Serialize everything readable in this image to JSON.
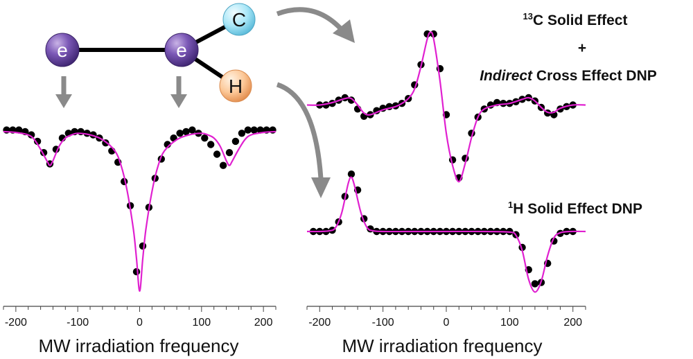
{
  "molecule": {
    "electron1": "e",
    "electron2": "e",
    "carbon": "C",
    "hydrogen": "H",
    "colors": {
      "electron": "#7b58b6",
      "carbon": "#a8e6f7",
      "hydrogen": "#fcc898",
      "arrow": "#8a8a8a"
    }
  },
  "titles": {
    "c13_sup": "13",
    "c13_main": "C Solid Effect",
    "plus": "+",
    "indirect_italic": "Indirect",
    "indirect_rest": " Cross Effect DNP",
    "h1_sup": "1",
    "h1_main": "H Solid Effect DNP"
  },
  "axes": {
    "left": {
      "xlabel": "MW irradiation frequency",
      "ticks": [
        -200,
        -100,
        0,
        100,
        200
      ],
      "tick_labels": [
        "-200",
        "-100",
        "0",
        "100",
        "200"
      ],
      "xlim": [
        -220,
        220
      ]
    },
    "right": {
      "xlabel": "MW irradiation frequency",
      "ticks": [
        -200,
        -100,
        0,
        100,
        200
      ],
      "tick_labels": [
        "-200",
        "-100",
        "0",
        "100",
        "200"
      ],
      "xlim": [
        -220,
        220
      ]
    }
  },
  "chart_data": [
    {
      "type": "scatter",
      "panel": "left",
      "grid": false,
      "xlim": [
        -220,
        220
      ],
      "ylim": [
        -1.0,
        0.05
      ],
      "fit_color": "#e020d0",
      "point_color": "#000000",
      "points_x": [
        -215,
        -205,
        -195,
        -185,
        -175,
        -165,
        -155,
        -145,
        -135,
        -125,
        -115,
        -105,
        -95,
        -85,
        -75,
        -65,
        -55,
        -45,
        -35,
        -25,
        -15,
        -5,
        5,
        15,
        25,
        35,
        45,
        55,
        65,
        75,
        85,
        95,
        105,
        115,
        125,
        135,
        145,
        155,
        165,
        175,
        185,
        195,
        205,
        215
      ],
      "points_y": [
        0.0,
        0.0,
        0.0,
        -0.01,
        -0.03,
        -0.07,
        -0.14,
        -0.21,
        -0.12,
        -0.05,
        -0.02,
        -0.01,
        -0.01,
        -0.02,
        -0.03,
        -0.05,
        -0.08,
        -0.13,
        -0.2,
        -0.32,
        -0.47,
        -0.88,
        -0.72,
        -0.48,
        -0.3,
        -0.18,
        -0.09,
        -0.05,
        -0.02,
        -0.01,
        0.0,
        -0.02,
        -0.05,
        -0.09,
        -0.15,
        -0.22,
        -0.14,
        -0.07,
        -0.02,
        0.0,
        0.0,
        0.0,
        0.0,
        0.0
      ],
      "fit_x": [
        -220,
        -200,
        -180,
        -170,
        -160,
        -150,
        -145,
        -140,
        -130,
        -120,
        -110,
        -100,
        -80,
        -60,
        -40,
        -30,
        -20,
        -10,
        -5,
        0,
        5,
        10,
        20,
        30,
        40,
        60,
        80,
        100,
        110,
        120,
        130,
        140,
        145,
        150,
        160,
        170,
        180,
        200,
        220
      ],
      "fit_y": [
        -0.01,
        -0.015,
        -0.03,
        -0.06,
        -0.12,
        -0.19,
        -0.22,
        -0.19,
        -0.1,
        -0.05,
        -0.03,
        -0.02,
        -0.03,
        -0.06,
        -0.13,
        -0.22,
        -0.38,
        -0.62,
        -0.8,
        -1.0,
        -0.8,
        -0.62,
        -0.38,
        -0.22,
        -0.13,
        -0.06,
        -0.03,
        -0.02,
        -0.03,
        -0.05,
        -0.1,
        -0.19,
        -0.22,
        -0.19,
        -0.12,
        -0.06,
        -0.03,
        -0.015,
        -0.01
      ]
    },
    {
      "type": "scatter",
      "panel": "right-top",
      "grid": false,
      "xlim": [
        -220,
        220
      ],
      "ylim": [
        -1.0,
        1.0
      ],
      "fit_color": "#e020d0",
      "point_color": "#000000",
      "points_x": [
        -200,
        -190,
        -180,
        -170,
        -160,
        -150,
        -140,
        -130,
        -120,
        -110,
        -100,
        -90,
        -80,
        -70,
        -60,
        -50,
        -40,
        -30,
        -20,
        -10,
        0,
        10,
        20,
        30,
        40,
        50,
        60,
        70,
        80,
        90,
        100,
        110,
        120,
        130,
        140,
        150,
        160,
        170,
        180,
        190,
        200
      ],
      "points_y": [
        0.0,
        0.0,
        0.02,
        0.06,
        0.09,
        0.06,
        -0.05,
        -0.14,
        -0.12,
        -0.07,
        -0.04,
        -0.02,
        -0.01,
        0.02,
        0.08,
        0.25,
        0.5,
        0.88,
        0.88,
        0.45,
        -0.12,
        -0.68,
        -0.9,
        -0.66,
        -0.35,
        -0.15,
        -0.05,
        0.0,
        0.03,
        0.02,
        0.02,
        0.04,
        0.07,
        0.09,
        0.05,
        -0.03,
        -0.1,
        -0.12,
        -0.05,
        -0.02,
        0.0
      ],
      "fit_x": [
        -220,
        -200,
        -180,
        -160,
        -150,
        -140,
        -130,
        -120,
        -100,
        -80,
        -70,
        -60,
        -50,
        -40,
        -30,
        -25,
        -20,
        -10,
        0,
        10,
        20,
        30,
        40,
        50,
        60,
        80,
        100,
        120,
        130,
        140,
        150,
        160,
        170,
        180,
        200,
        220
      ],
      "fit_y": [
        0.0,
        0.0,
        0.03,
        0.08,
        0.08,
        0.0,
        -0.1,
        -0.12,
        -0.06,
        -0.02,
        0.02,
        0.08,
        0.2,
        0.48,
        0.82,
        0.9,
        0.82,
        0.3,
        -0.35,
        -0.75,
        -0.95,
        -0.72,
        -0.4,
        -0.15,
        -0.05,
        0.0,
        0.02,
        0.07,
        0.09,
        0.05,
        -0.03,
        -0.09,
        -0.09,
        -0.04,
        0.0,
        0.0
      ]
    },
    {
      "type": "scatter",
      "panel": "right-bottom",
      "grid": false,
      "xlim": [
        -220,
        220
      ],
      "ylim": [
        -1.0,
        1.0
      ],
      "fit_color": "#e020d0",
      "point_color": "#000000",
      "points_x": [
        -210,
        -200,
        -190,
        -180,
        -170,
        -160,
        -150,
        -140,
        -130,
        -120,
        -110,
        -100,
        -90,
        -80,
        -70,
        -60,
        -50,
        -40,
        -30,
        -20,
        -10,
        0,
        10,
        20,
        30,
        40,
        50,
        60,
        70,
        80,
        90,
        100,
        110,
        120,
        130,
        140,
        150,
        160,
        170,
        180,
        190,
        200
      ],
      "points_y": [
        0.0,
        0.0,
        0.0,
        0.02,
        0.15,
        0.55,
        0.9,
        0.65,
        0.2,
        0.04,
        0.0,
        0.0,
        0.0,
        0.0,
        0.0,
        0.0,
        0.0,
        0.0,
        0.0,
        0.0,
        0.0,
        0.0,
        0.0,
        0.0,
        0.0,
        0.0,
        0.0,
        0.0,
        0.0,
        0.0,
        0.0,
        0.0,
        -0.05,
        -0.25,
        -0.6,
        -0.82,
        -0.8,
        -0.5,
        -0.15,
        -0.03,
        0.0,
        0.0
      ],
      "fit_x": [
        -220,
        -200,
        -185,
        -175,
        -165,
        -155,
        -150,
        -145,
        -135,
        -125,
        -115,
        -100,
        -60,
        0,
        60,
        100,
        110,
        120,
        130,
        140,
        150,
        160,
        170,
        180,
        195,
        220
      ],
      "fit_y": [
        0.0,
        0.0,
        0.01,
        0.06,
        0.3,
        0.75,
        0.85,
        0.72,
        0.3,
        0.06,
        0.01,
        0.0,
        0.0,
        0.0,
        0.0,
        -0.01,
        -0.06,
        -0.3,
        -0.75,
        -0.95,
        -0.78,
        -0.38,
        -0.1,
        -0.02,
        0.0,
        0.0
      ]
    }
  ]
}
